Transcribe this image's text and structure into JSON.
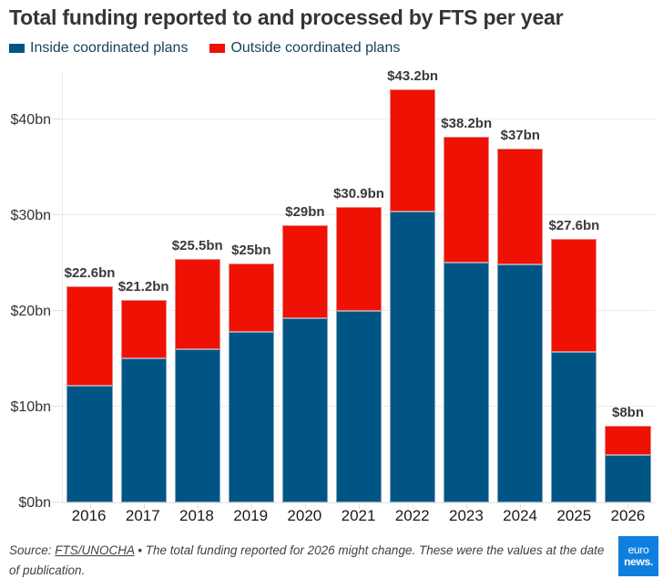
{
  "title": "Total funding reported to and processed by FTS per year",
  "legend": {
    "inside_label": "Inside coordinated plans",
    "outside_label": "Outside coordinated plans"
  },
  "colors": {
    "inside": "#005585",
    "outside": "#ee1104",
    "logo_bg": "#0e7fdd"
  },
  "chart_data": {
    "type": "bar",
    "stacked": true,
    "title": "Total funding reported to and processed by FTS per year",
    "categories": [
      "2016",
      "2017",
      "2018",
      "2019",
      "2020",
      "2021",
      "2022",
      "2023",
      "2024",
      "2025",
      "2026"
    ],
    "series": [
      {
        "name": "Inside coordinated plans",
        "color": "#005585",
        "values": [
          12.2,
          15.1,
          16.0,
          17.8,
          19.3,
          20.0,
          30.4,
          25.1,
          24.9,
          15.7,
          5.0
        ]
      },
      {
        "name": "Outside coordinated plans",
        "color": "#ee1104",
        "values": [
          10.4,
          6.1,
          9.5,
          7.2,
          9.7,
          10.9,
          12.8,
          13.1,
          12.1,
          11.9,
          3.0
        ]
      }
    ],
    "totals": [
      22.6,
      21.2,
      25.5,
      25.0,
      29.0,
      30.9,
      43.2,
      38.2,
      37.0,
      27.6,
      8.0
    ],
    "total_labels": [
      "$22.6bn",
      "$21.2bn",
      "$25.5bn",
      "$25bn",
      "$29bn",
      "$30.9bn",
      "$43.2bn",
      "$38.2bn",
      "$37bn",
      "$27.6bn",
      "$8bn"
    ],
    "y_ticks": [
      {
        "value": 0,
        "label": "$0bn"
      },
      {
        "value": 10,
        "label": "$10bn"
      },
      {
        "value": 20,
        "label": "$20bn"
      },
      {
        "value": 30,
        "label": "$30bn"
      },
      {
        "value": 40,
        "label": "$40bn"
      }
    ],
    "ylim": [
      0,
      45
    ],
    "xlabel": "",
    "ylabel": "",
    "grid": true,
    "legend_position": "top-left"
  },
  "footer": {
    "source_prefix": "Source: ",
    "source_link": "FTS/UNOCHA",
    "separator": " • ",
    "note": "The total funding reported for 2026 might change. These were the values at the date of publication."
  },
  "logo": {
    "line1": "euro",
    "line2": "news."
  }
}
